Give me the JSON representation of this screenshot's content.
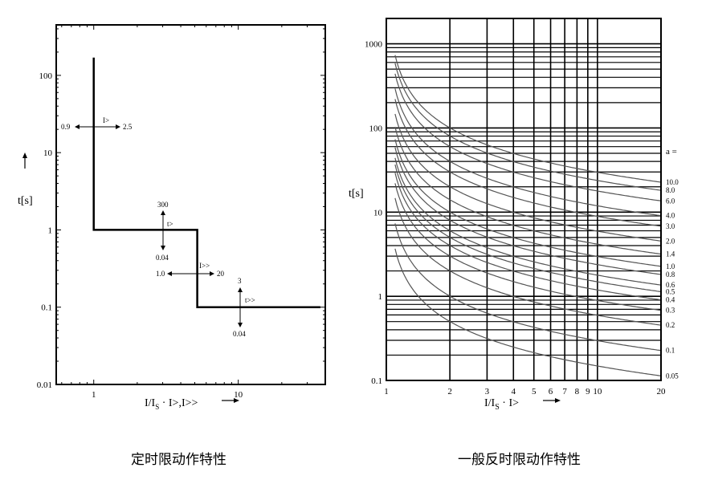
{
  "chart_data": [
    {
      "type": "line",
      "caption": "定时限动作特性",
      "xscale": "log",
      "yscale": "log",
      "xlim": [
        0.55,
        40
      ],
      "ylim": [
        0.01,
        450
      ],
      "ylabel": "t[s]",
      "xlabel_main": "I/I",
      "xlabel_sub": "S",
      "xlabel_rest": " · I>,I>>",
      "xticks": [
        {
          "v": 1,
          "label": "1"
        },
        {
          "v": 10,
          "label": "10"
        }
      ],
      "yticks": [
        {
          "v": 0.01,
          "label": "0.01"
        },
        {
          "v": 0.1,
          "label": "0.1"
        },
        {
          "v": 1,
          "label": "1"
        },
        {
          "v": 10,
          "label": "10"
        },
        {
          "v": 100,
          "label": "100"
        }
      ],
      "curve": [
        [
          1,
          170
        ],
        [
          1,
          1
        ],
        [
          5.2,
          1
        ],
        [
          5.2,
          0.1
        ],
        [
          37,
          0.1
        ]
      ],
      "annotations": {
        "i_gt": {
          "label": "I>",
          "min": "0.9",
          "max": "2.5"
        },
        "t_gt": {
          "label": "t>",
          "max": "300",
          "min": "0.04"
        },
        "i_gtgt": {
          "label": "I>>",
          "min": "1.0",
          "max": "20"
        },
        "t_gtgt": {
          "label": "t>>",
          "max": "3",
          "min": "0.04"
        }
      }
    },
    {
      "type": "line",
      "caption": "一般反时限动作特性",
      "xscale": "log",
      "yscale": "log",
      "xlim": [
        1,
        20
      ],
      "ylim": [
        0.1,
        2000
      ],
      "ylabel": "t[s]",
      "xlabel_main": "I/I",
      "xlabel_sub": "S",
      "xlabel_rest": " · I>",
      "xticks": [
        {
          "v": 1,
          "label": "1"
        },
        {
          "v": 2,
          "label": "2"
        },
        {
          "v": 3,
          "label": "3"
        },
        {
          "v": 4,
          "label": "4"
        },
        {
          "v": 5,
          "label": "5"
        },
        {
          "v": 6,
          "label": "6"
        },
        {
          "v": 7,
          "label": "7"
        },
        {
          "v": 8,
          "label": "8"
        },
        {
          "v": 9,
          "label": "9"
        },
        {
          "v": 10,
          "label": "10"
        },
        {
          "v": 20,
          "label": "20"
        }
      ],
      "yticks": [
        {
          "v": 0.1,
          "label": "0.1"
        },
        {
          "v": 1,
          "label": "1"
        },
        {
          "v": 10,
          "label": "10"
        },
        {
          "v": 100,
          "label": "100"
        },
        {
          "v": 1000,
          "label": "1000"
        }
      ],
      "legend_title": "a =",
      "series": [
        {
          "name": "10.0",
          "a": 10.0
        },
        {
          "name": "8.0",
          "a": 8.0
        },
        {
          "name": "6.0",
          "a": 6.0
        },
        {
          "name": "4.0",
          "a": 4.0
        },
        {
          "name": "3.0",
          "a": 3.0
        },
        {
          "name": "2.0",
          "a": 2.0
        },
        {
          "name": "1.4",
          "a": 1.4
        },
        {
          "name": "1.0",
          "a": 1.0
        },
        {
          "name": "0.8",
          "a": 0.8
        },
        {
          "name": "0.6",
          "a": 0.6
        },
        {
          "name": "0.5",
          "a": 0.5
        },
        {
          "name": "0.4",
          "a": 0.4
        },
        {
          "name": "0.3",
          "a": 0.3
        },
        {
          "name": "0.2",
          "a": 0.2
        },
        {
          "name": "0.1",
          "a": 0.1
        },
        {
          "name": "0.05",
          "a": 0.05
        }
      ]
    }
  ]
}
